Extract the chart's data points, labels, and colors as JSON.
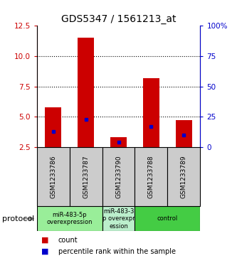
{
  "title": "GDS5347 / 1561213_at",
  "samples": [
    "GSM1233786",
    "GSM1233787",
    "GSM1233790",
    "GSM1233788",
    "GSM1233789"
  ],
  "red_tops": [
    5.8,
    11.5,
    3.3,
    8.2,
    4.7
  ],
  "blue_vals": [
    3.8,
    4.8,
    2.9,
    4.2,
    3.5
  ],
  "bar_bottom": 2.5,
  "ylim_left": [
    2.5,
    12.5
  ],
  "ylim_right": [
    0,
    100
  ],
  "left_ticks": [
    2.5,
    5.0,
    7.5,
    10.0,
    12.5
  ],
  "right_ticks": [
    0,
    25,
    50,
    75,
    100
  ],
  "right_tick_labels": [
    "0",
    "25",
    "50",
    "75",
    "100%"
  ],
  "left_color": "#cc0000",
  "blue_color": "#0000cc",
  "bar_color": "#cc0000",
  "grid_color": "#000000",
  "sample_bg": "#cccccc",
  "protocol_groups": [
    {
      "label": "miR-483-5p\noverexpression",
      "start": 0,
      "end": 2,
      "color": "#99ee99"
    },
    {
      "label": "miR-483-3\np overexpr\nession",
      "start": 2,
      "end": 3,
      "color": "#bbeecc"
    },
    {
      "label": "control",
      "start": 3,
      "end": 5,
      "color": "#44cc44"
    }
  ],
  "protocol_label": "protocol",
  "legend_count_label": "count",
  "legend_pct_label": "percentile rank within the sample",
  "title_fontsize": 10,
  "tick_fontsize": 7.5,
  "sample_fontsize": 6.5,
  "proto_fontsize": 6.0,
  "legend_fontsize": 7,
  "bar_width": 0.5
}
